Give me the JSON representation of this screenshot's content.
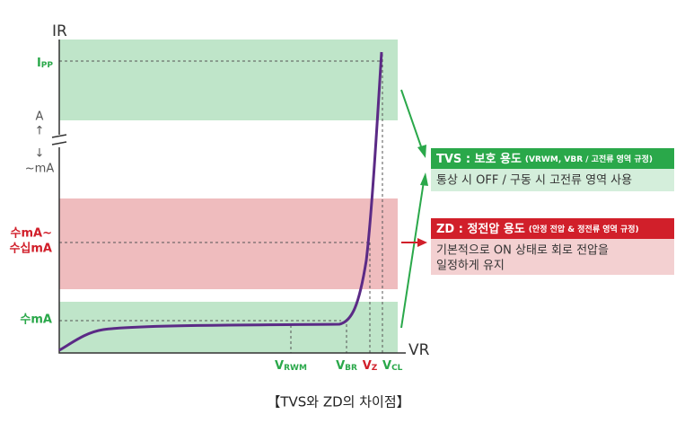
{
  "axes": {
    "y_label": "IR",
    "x_label": "VR"
  },
  "y_labels": {
    "ipp": {
      "main": "I",
      "sub": "PP"
    },
    "range_a": "A",
    "up": "↑",
    "down": "↓",
    "range_ma": "~mA",
    "zd_range_1": "수mA~",
    "zd_range_2": "수십mA",
    "low": "수mA"
  },
  "x_labels": [
    {
      "main": "V",
      "sub": "RWM"
    },
    {
      "main": "V",
      "sub": "BR"
    },
    {
      "main": "V",
      "sub": "Z"
    },
    {
      "main": "V",
      "sub": "CL"
    }
  ],
  "tvs": {
    "title": "TVS : 보호 용도",
    "note": "(VRWM, VBR / 고전류 영역 규정)",
    "body": "통상 시 OFF / 구동 시 고전류 영역 사용"
  },
  "zd": {
    "title": "ZD : 정전압 용도",
    "note": "(안정 전압 & 정전류 영역 규정)",
    "body": [
      "기본적으로 ON 상태로 회로 전압을",
      "일정하게 유지"
    ]
  },
  "caption": "【TVS와 ZD의 차이점】"
}
